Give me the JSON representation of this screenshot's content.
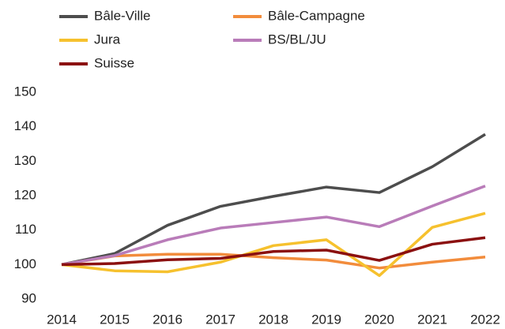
{
  "chart_data": {
    "type": "line",
    "x": [
      2014,
      2015,
      2016,
      2017,
      2018,
      2019,
      2020,
      2021,
      2022
    ],
    "series": [
      {
        "name": "Bâle-Ville",
        "color": "#4d4d4d",
        "values": [
          100,
          103.2,
          111.4,
          116.9,
          119.8,
          122.5,
          120.9,
          128.4,
          137.8
        ]
      },
      {
        "name": "Bâle-Campagne",
        "color": "#f28c3c",
        "values": [
          100,
          102.5,
          103,
          103,
          102,
          101.3,
          99,
          100.7,
          102.2
        ]
      },
      {
        "name": "Jura",
        "color": "#f6c12e",
        "values": [
          100,
          98.2,
          97.9,
          100.7,
          105.5,
          107.2,
          96.8,
          110.8,
          114.9
        ]
      },
      {
        "name": "BS/BL/JU",
        "color": "#b97cb9",
        "values": [
          100,
          102.6,
          107.2,
          110.6,
          112.2,
          113.8,
          111,
          117,
          122.8
        ]
      },
      {
        "name": "Suisse",
        "color": "#8b1010",
        "values": [
          100,
          100.3,
          101.4,
          101.8,
          103.8,
          104.2,
          101.2,
          105.9,
          107.8
        ]
      }
    ],
    "xlim": [
      2014,
      2022
    ],
    "xticks": [
      2014,
      2015,
      2016,
      2017,
      2018,
      2019,
      2020,
      2021,
      2022
    ],
    "ylim": [
      90,
      150
    ],
    "yticks": [
      90,
      100,
      110,
      120,
      130,
      140,
      150
    ],
    "grid": false,
    "legend": "top"
  }
}
